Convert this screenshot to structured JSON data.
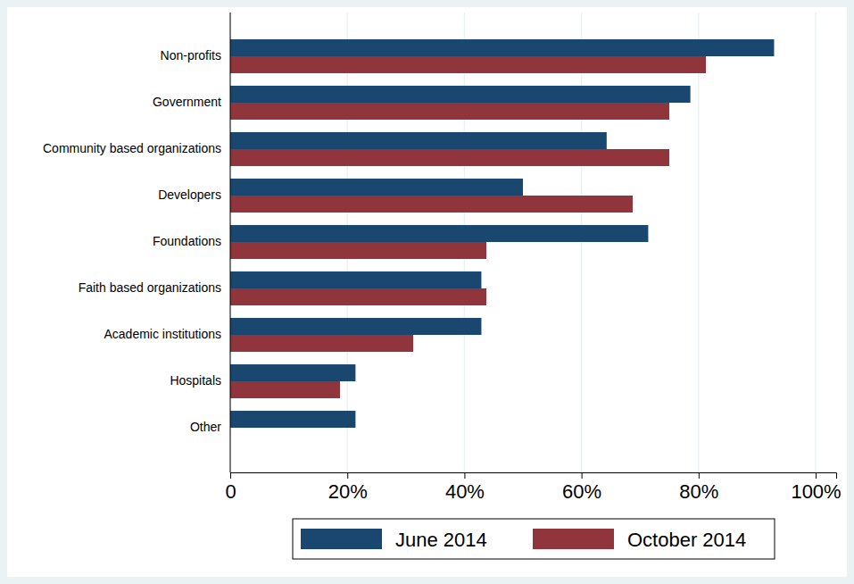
{
  "chart_data": {
    "type": "bar",
    "orientation": "horizontal",
    "categories": [
      "Non-profits",
      "Government",
      "Community based organizations",
      "Developers",
      "Foundations",
      "Faith based organizations",
      "Academic institutions",
      "Hospitals",
      "Other"
    ],
    "series": [
      {
        "name": "June 2014",
        "color": "#1a476f",
        "values": [
          92.9,
          78.6,
          64.3,
          50,
          71.4,
          42.9,
          42.9,
          21.4,
          21.4
        ]
      },
      {
        "name": "October 2014",
        "color": "#90353b",
        "values": [
          81.25,
          75,
          75,
          68.75,
          43.75,
          43.75,
          31.25,
          18.75,
          0
        ]
      }
    ],
    "xlim": [
      0,
      103.5
    ],
    "xticks": [
      0,
      {
        "value": 20,
        "label": "20%"
      },
      {
        "value": 40,
        "label": "40%"
      },
      {
        "value": 60,
        "label": "60%"
      },
      {
        "value": 80,
        "label": "80%"
      },
      {
        "value": 100,
        "label": "100%"
      }
    ],
    "grid": true,
    "legend": "bottom"
  }
}
